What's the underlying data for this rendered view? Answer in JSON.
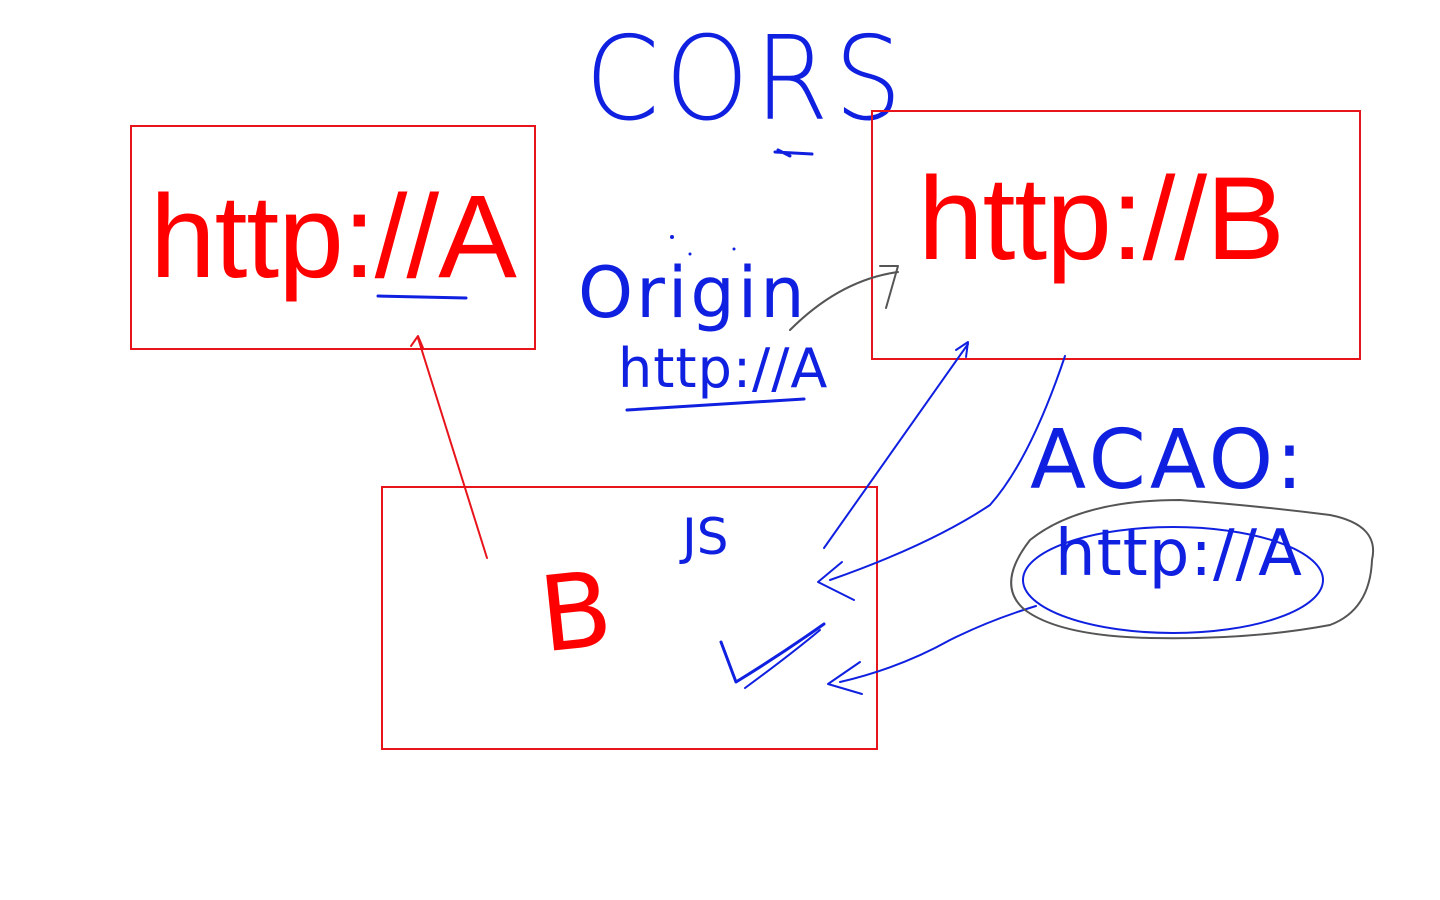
{
  "title": "CORS",
  "box_a": {
    "label": "http://A"
  },
  "box_b": {
    "label": "http://B"
  },
  "browser_box": {
    "mark": "B",
    "script_label": "JS"
  },
  "origin_note": {
    "label": "Origin",
    "value": "http://A"
  },
  "acao_note": {
    "label": "ACAO:",
    "value": "http://A"
  },
  "colors": {
    "box_red": "#e8141c",
    "text_red": "#ff0000",
    "ink_blue": "#1020e0",
    "ink_gray": "#555555"
  }
}
